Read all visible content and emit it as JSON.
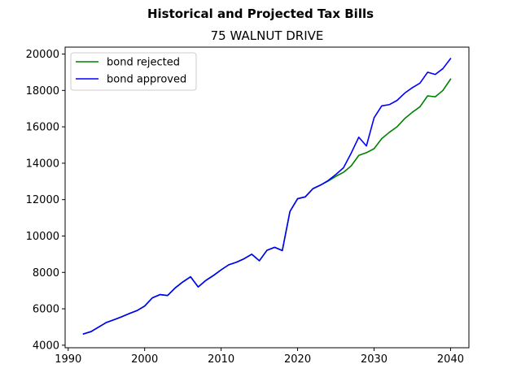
{
  "chart_data": {
    "type": "line",
    "suptitle": "Historical and Projected Tax Bills",
    "title": "75 WALNUT DRIVE",
    "xlabel": "",
    "ylabel": "",
    "xlim": [
      1989.6,
      2042.4
    ],
    "ylim": [
      3860,
      20380
    ],
    "xticks": [
      1990,
      2000,
      2010,
      2020,
      2030,
      2040
    ],
    "yticks": [
      4000,
      6000,
      8000,
      10000,
      12000,
      14000,
      16000,
      18000,
      20000
    ],
    "grid": false,
    "legend_position": "top-left",
    "series": [
      {
        "name": "bond rejected",
        "color": "#008000",
        "x": [
          1992,
          1993,
          1994,
          1995,
          1996,
          1997,
          1998,
          1999,
          2000,
          2001,
          2002,
          2003,
          2004,
          2005,
          2006,
          2007,
          2008,
          2009,
          2010,
          2011,
          2012,
          2013,
          2014,
          2015,
          2016,
          2017,
          2018,
          2019,
          2020,
          2021,
          2022,
          2023,
          2024,
          2025,
          2026,
          2027,
          2028,
          2029,
          2030,
          2031,
          2032,
          2033,
          2034,
          2035,
          2036,
          2037,
          2038,
          2039,
          2040
        ],
        "values": [
          4620,
          4750,
          5000,
          5250,
          5400,
          5560,
          5740,
          5900,
          6150,
          6600,
          6780,
          6730,
          7150,
          7480,
          7760,
          7200,
          7560,
          7830,
          8140,
          8420,
          8560,
          8750,
          9000,
          8640,
          9220,
          9380,
          9200,
          11350,
          12050,
          12150,
          12600,
          12800,
          13020,
          13280,
          13500,
          13850,
          14430,
          14580,
          14800,
          15350,
          15700,
          16000,
          16450,
          16800,
          17100,
          17700,
          17650,
          18000,
          18620
        ]
      },
      {
        "name": "bond approved",
        "color": "#0000ff",
        "x": [
          1992,
          1993,
          1994,
          1995,
          1996,
          1997,
          1998,
          1999,
          2000,
          2001,
          2002,
          2003,
          2004,
          2005,
          2006,
          2007,
          2008,
          2009,
          2010,
          2011,
          2012,
          2013,
          2014,
          2015,
          2016,
          2017,
          2018,
          2019,
          2020,
          2021,
          2022,
          2023,
          2024,
          2025,
          2026,
          2027,
          2028,
          2029,
          2030,
          2031,
          2032,
          2033,
          2034,
          2035,
          2036,
          2037,
          2038,
          2039,
          2040
        ],
        "values": [
          4620,
          4750,
          5000,
          5250,
          5400,
          5560,
          5740,
          5900,
          6150,
          6600,
          6780,
          6730,
          7150,
          7480,
          7760,
          7200,
          7560,
          7830,
          8140,
          8420,
          8560,
          8750,
          9000,
          8640,
          9220,
          9380,
          9200,
          11350,
          12050,
          12150,
          12600,
          12800,
          13050,
          13380,
          13750,
          14550,
          15430,
          14950,
          16500,
          17150,
          17220,
          17450,
          17850,
          18150,
          18400,
          19000,
          18880,
          19200,
          19750
        ]
      }
    ]
  }
}
